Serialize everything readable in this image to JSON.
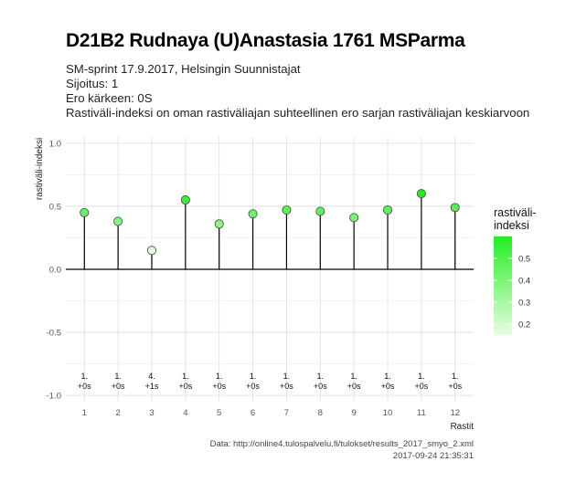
{
  "header": {
    "title": "D21B2 Rudnaya (U)Anastasia 1761 MSParma",
    "lines": [
      "SM-sprint 17.9.2017, Helsingin Suunnistajat",
      "Sijoitus: 1",
      "Ero kärkeen: 0S",
      "Rastiväli-indeksi on oman rastiväliajan suhteellinen ero sarjan rastiväliajan keskiarvoon"
    ]
  },
  "legend": {
    "title_lines": [
      "rastiväli-",
      "indeksi"
    ],
    "ticks": [
      0.2,
      0.3,
      0.4,
      0.5
    ],
    "range": [
      0.15,
      0.6
    ],
    "color_low": "#e8ffe0",
    "color_high": "#22ee22"
  },
  "caption": {
    "source": "Data: http://online4.tulospalvelu.fi/tulokset/results_2017_smyo_2.xml",
    "timestamp": "2017-09-24 21:35:31"
  },
  "chart_data": {
    "type": "lollipop",
    "xlabel": "Rastit",
    "ylabel": "rastiväli-indeksi",
    "ylim": [
      -1.05,
      1.05
    ],
    "yticks": [
      -1.0,
      -0.5,
      0.0,
      0.5,
      1.0
    ],
    "ytick_labels": [
      "-1.0",
      "-0.5",
      "0.0",
      "0.5",
      "1.0"
    ],
    "x": [
      1,
      2,
      3,
      4,
      5,
      6,
      7,
      8,
      9,
      10,
      11,
      12
    ],
    "values": [
      0.45,
      0.38,
      0.15,
      0.55,
      0.36,
      0.44,
      0.47,
      0.46,
      0.41,
      0.47,
      0.6,
      0.49
    ],
    "annotations": [
      {
        "rank": "1.",
        "diff": "+0s"
      },
      {
        "rank": "1.",
        "diff": "+0s"
      },
      {
        "rank": "4.",
        "diff": "+1s"
      },
      {
        "rank": "1.",
        "diff": "+0s"
      },
      {
        "rank": "1.",
        "diff": "+0s"
      },
      {
        "rank": "1.",
        "diff": "+0s"
      },
      {
        "rank": "1.",
        "diff": "+0s"
      },
      {
        "rank": "1.",
        "diff": "+0s"
      },
      {
        "rank": "1.",
        "diff": "+0s"
      },
      {
        "rank": "1.",
        "diff": "+0s"
      },
      {
        "rank": "1.",
        "diff": "+0s"
      },
      {
        "rank": "1.",
        "diff": "+0s"
      }
    ],
    "grid": true,
    "legend_position": "right"
  }
}
